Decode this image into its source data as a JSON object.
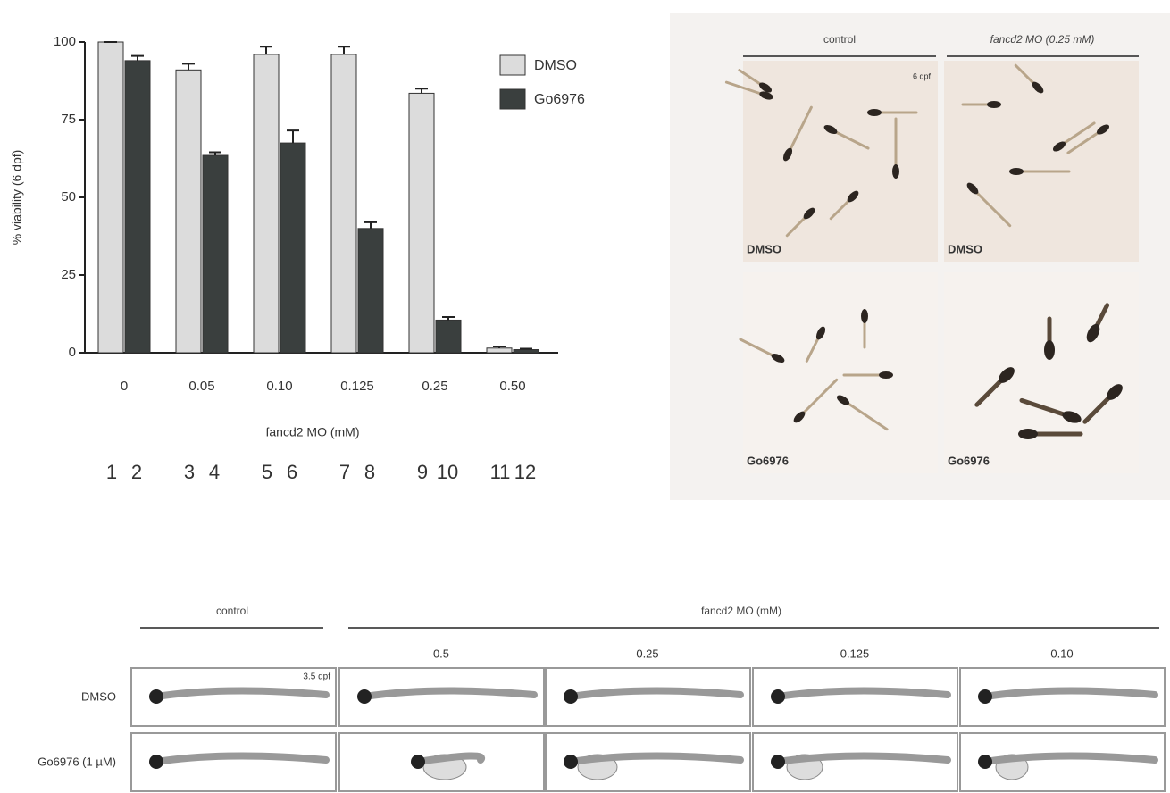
{
  "chart_data": {
    "type": "bar",
    "ylabel": "% viability (6 dpf)",
    "xlabel": "fancd2 MO (mM)",
    "categories": [
      "0",
      "0.05",
      "0.10",
      "0.125",
      "0.25",
      "0.50"
    ],
    "series": [
      {
        "name": "DMSO",
        "color": "#dcdcdc",
        "values": [
          100,
          91,
          96,
          96,
          83.5,
          1.5
        ],
        "errors": [
          0,
          2,
          2.5,
          2.5,
          1.5,
          0.5
        ]
      },
      {
        "name": "Go6976",
        "color": "#3a3f3e",
        "values": [
          94,
          63.5,
          67.5,
          40,
          10.5,
          1
        ],
        "errors": [
          1.5,
          1,
          4,
          2,
          1,
          0.3
        ]
      }
    ],
    "ylim": [
      0,
      100
    ],
    "yticks": [
      0,
      25,
      50,
      75,
      100
    ],
    "grid": false,
    "legend": "upper right",
    "lane_numbers": [
      "1",
      "2",
      "3",
      "4",
      "5",
      "6",
      "7",
      "8",
      "9",
      "10",
      "11",
      "12"
    ]
  },
  "top_panel": {
    "headers": [
      "control",
      "fancd2 MO (0.25 mM)"
    ],
    "stage": "6 dpf",
    "labels": [
      "DMSO",
      "DMSO",
      "Go6976",
      "Go6976"
    ]
  },
  "bottom_panel": {
    "headers": [
      "control",
      "fancd2 MO (mM)"
    ],
    "doses": [
      "0.5",
      "0.25",
      "0.125",
      "0.10"
    ],
    "rows": [
      "DMSO",
      "Go6976 (1 µM)"
    ],
    "stage": "3.5 dpf"
  }
}
